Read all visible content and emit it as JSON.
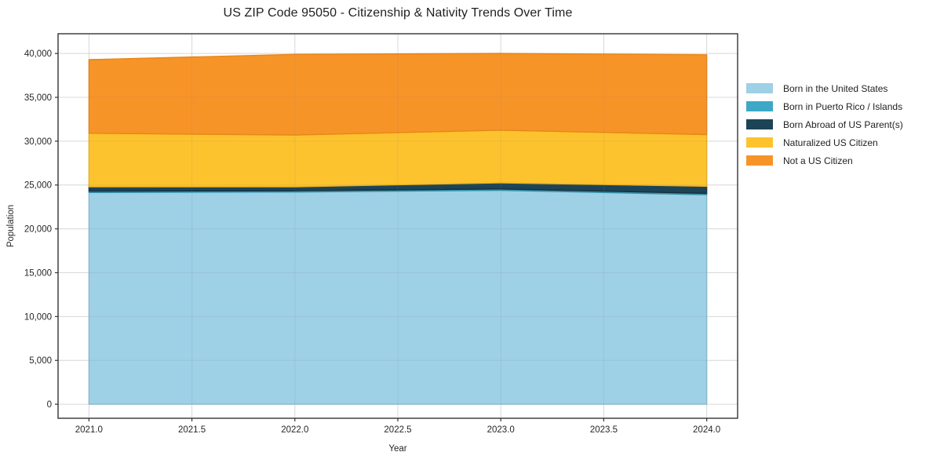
{
  "figure": {
    "background": "#ffffff"
  },
  "colors": {
    "spine": "#333333",
    "grid": "#e7e7e7",
    "grid_overlay": "rgba(130,130,130,0.14)",
    "tick_text": "#262626",
    "title_text": "#1f1f1f"
  },
  "chart_data": {
    "type": "area",
    "stacked": true,
    "title": "US ZIP Code 95050 - Citizenship & Nativity Trends Over Time",
    "xlabel": "Year",
    "ylabel": "Population",
    "grid": true,
    "legend_position": "right",
    "x": [
      2021,
      2022,
      2023,
      2024
    ],
    "xlim": [
      2020.85,
      2024.15
    ],
    "ylim": [
      -1600,
      42250
    ],
    "x_tick_values": [
      2021.0,
      2021.5,
      2022.0,
      2022.5,
      2023.0,
      2023.5,
      2024.0
    ],
    "x_tick_labels": [
      "2021.0",
      "2021.5",
      "2022.0",
      "2022.5",
      "2023.0",
      "2023.5",
      "2024.0"
    ],
    "y_tick_values": [
      0,
      5000,
      10000,
      15000,
      20000,
      25000,
      30000,
      35000,
      40000
    ],
    "y_tick_labels": [
      "0",
      "5,000",
      "10,000",
      "15,000",
      "20,000",
      "25,000",
      "30,000",
      "35,000",
      "40,000"
    ],
    "series": [
      {
        "name": "Born in the United States",
        "color": "#9ed0e6",
        "edge": "#8abfd8",
        "values": [
          24150,
          24200,
          24400,
          23900
        ]
      },
      {
        "name": "Born in Puerto Rico / Islands",
        "color": "#3da8c6",
        "edge": "#338fa9",
        "values": [
          150,
          150,
          150,
          150
        ]
      },
      {
        "name": "Born Abroad of US Parent(s)",
        "color": "#1d4456",
        "edge": "#152f3c",
        "values": [
          500,
          450,
          700,
          800
        ]
      },
      {
        "name": "Naturalized US Citizen",
        "color": "#fdc32e",
        "edge": "#f0b31c",
        "values": [
          6100,
          5900,
          6000,
          5900
        ]
      },
      {
        "name": "Not a US Citizen",
        "color": "#f79428",
        "edge": "#e98518",
        "values": [
          8400,
          9200,
          8750,
          9100
        ]
      }
    ]
  }
}
